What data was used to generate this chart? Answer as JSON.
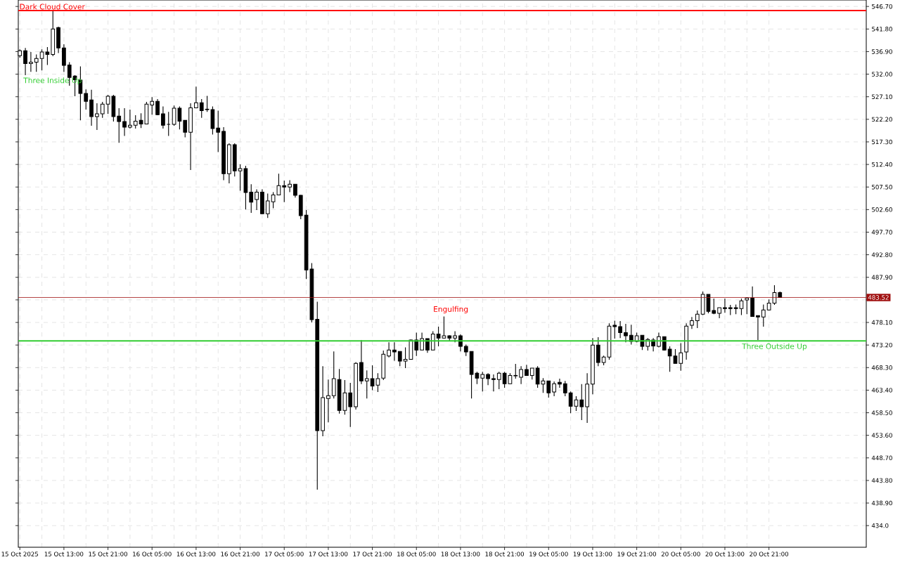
{
  "chart_data": {
    "type": "candlestick",
    "x": [
      "2025-10-15T05:00",
      "2025-10-15T06:00",
      "2025-10-15T07:00",
      "2025-10-15T08:00",
      "2025-10-15T09:00",
      "2025-10-15T10:00",
      "2025-10-15T11:00",
      "2025-10-15T12:00",
      "2025-10-15T13:00",
      "2025-10-15T14:00",
      "2025-10-15T15:00",
      "2025-10-15T16:00",
      "2025-10-15T17:00",
      "2025-10-15T18:00",
      "2025-10-15T19:00",
      "2025-10-15T20:00",
      "2025-10-15T21:00",
      "2025-10-15T22:00",
      "2025-10-15T23:00",
      "2025-10-16T00:00",
      "2025-10-16T01:00",
      "2025-10-16T02:00",
      "2025-10-16T03:00",
      "2025-10-16T04:00",
      "2025-10-16T05:00",
      "2025-10-16T06:00",
      "2025-10-16T07:00",
      "2025-10-16T08:00",
      "2025-10-16T09:00",
      "2025-10-16T10:00",
      "2025-10-16T11:00",
      "2025-10-16T12:00",
      "2025-10-16T13:00",
      "2025-10-16T14:00",
      "2025-10-16T15:00",
      "2025-10-16T16:00",
      "2025-10-16T17:00",
      "2025-10-16T18:00",
      "2025-10-16T19:00",
      "2025-10-16T20:00",
      "2025-10-16T21:00",
      "2025-10-16T22:00",
      "2025-10-16T23:00",
      "2025-10-17T00:00",
      "2025-10-17T01:00",
      "2025-10-17T02:00",
      "2025-10-17T03:00",
      "2025-10-17T04:00",
      "2025-10-17T05:00",
      "2025-10-17T06:00",
      "2025-10-17T07:00",
      "2025-10-17T08:00",
      "2025-10-17T09:00",
      "2025-10-17T10:00",
      "2025-10-17T11:00",
      "2025-10-17T12:00",
      "2025-10-17T13:00",
      "2025-10-17T14:00",
      "2025-10-17T15:00",
      "2025-10-17T16:00",
      "2025-10-17T17:00",
      "2025-10-17T18:00",
      "2025-10-17T19:00",
      "2025-10-17T20:00",
      "2025-10-17T21:00",
      "2025-10-17T22:00",
      "2025-10-17T23:00",
      "2025-10-18T00:00",
      "2025-10-18T01:00",
      "2025-10-18T02:00",
      "2025-10-18T03:00",
      "2025-10-18T04:00",
      "2025-10-18T05:00",
      "2025-10-18T06:00",
      "2025-10-18T07:00",
      "2025-10-18T08:00",
      "2025-10-18T09:00",
      "2025-10-18T10:00",
      "2025-10-18T11:00",
      "2025-10-18T12:00",
      "2025-10-18T13:00",
      "2025-10-18T14:00",
      "2025-10-18T15:00",
      "2025-10-18T16:00",
      "2025-10-18T17:00",
      "2025-10-18T18:00",
      "2025-10-18T19:00",
      "2025-10-18T20:00",
      "2025-10-18T21:00",
      "2025-10-18T22:00",
      "2025-10-18T23:00",
      "2025-10-19T00:00",
      "2025-10-19T01:00",
      "2025-10-19T02:00",
      "2025-10-19T03:00",
      "2025-10-19T04:00",
      "2025-10-19T05:00",
      "2025-10-19T06:00",
      "2025-10-19T07:00",
      "2025-10-19T08:00",
      "2025-10-19T09:00",
      "2025-10-19T10:00",
      "2025-10-19T11:00",
      "2025-10-19T12:00",
      "2025-10-19T13:00",
      "2025-10-19T14:00",
      "2025-10-19T15:00",
      "2025-10-19T16:00",
      "2025-10-19T17:00",
      "2025-10-19T18:00",
      "2025-10-19T19:00",
      "2025-10-19T20:00",
      "2025-10-19T21:00",
      "2025-10-19T22:00",
      "2025-10-19T23:00",
      "2025-10-20T00:00",
      "2025-10-20T01:00",
      "2025-10-20T02:00",
      "2025-10-20T03:00",
      "2025-10-20T04:00",
      "2025-10-20T05:00",
      "2025-10-20T06:00",
      "2025-10-20T07:00",
      "2025-10-20T08:00",
      "2025-10-20T09:00",
      "2025-10-20T10:00",
      "2025-10-20T11:00",
      "2025-10-20T12:00",
      "2025-10-20T13:00",
      "2025-10-20T14:00",
      "2025-10-20T15:00",
      "2025-10-20T16:00",
      "2025-10-20T17:00",
      "2025-10-20T18:00",
      "2025-10-20T19:00",
      "2025-10-20T20:00",
      "2025-10-20T21:00",
      "2025-10-20T22:00",
      "2025-10-20T23:00"
    ],
    "ohlc": [
      [
        536.0,
        537.4,
        535.6,
        537.1
      ],
      [
        537.1,
        537.7,
        531.8,
        534.3
      ],
      [
        534.3,
        536.8,
        532.5,
        534.6
      ],
      [
        534.6,
        536.3,
        532.5,
        535.4
      ],
      [
        535.4,
        537.4,
        532.8,
        536.8
      ],
      [
        536.8,
        537.9,
        534.0,
        536.3
      ],
      [
        536.3,
        545.8,
        535.9,
        541.8
      ],
      [
        542.1,
        542.3,
        536.6,
        537.7
      ],
      [
        537.7,
        538.5,
        532.5,
        533.9
      ],
      [
        534.0,
        534.6,
        529.5,
        531.3
      ],
      [
        531.6,
        531.8,
        527.2,
        530.8
      ],
      [
        530.7,
        533.7,
        522.0,
        527.8
      ],
      [
        527.8,
        528.7,
        524.3,
        526.1
      ],
      [
        526.4,
        528.6,
        520.8,
        522.8
      ],
      [
        522.8,
        525.7,
        519.9,
        523.4
      ],
      [
        523.4,
        526.0,
        522.5,
        525.5
      ],
      [
        525.5,
        527.5,
        523.4,
        527.2
      ],
      [
        527.2,
        527.5,
        521.7,
        522.8
      ],
      [
        522.9,
        524.6,
        517.1,
        521.7
      ],
      [
        521.7,
        524.6,
        518.6,
        520.5
      ],
      [
        520.5,
        524.3,
        520.2,
        520.9
      ],
      [
        520.9,
        523.1,
        520.2,
        521.8
      ],
      [
        522.0,
        523.5,
        520.3,
        521.2
      ],
      [
        521.2,
        526.0,
        521.1,
        525.5
      ],
      [
        525.3,
        527.0,
        523.2,
        526.1
      ],
      [
        526.1,
        526.6,
        523.1,
        523.2
      ],
      [
        523.4,
        525.0,
        520.2,
        520.9
      ],
      [
        521.1,
        523.8,
        518.6,
        521.1
      ],
      [
        521.1,
        525.2,
        520.8,
        524.6
      ],
      [
        524.6,
        525.0,
        520.0,
        521.8
      ],
      [
        522.0,
        522.0,
        518.3,
        519.4
      ],
      [
        519.4,
        525.7,
        511.2,
        524.7
      ],
      [
        524.7,
        529.3,
        524.7,
        525.8
      ],
      [
        525.8,
        526.6,
        522.5,
        524.1
      ],
      [
        524.4,
        527.3,
        523.8,
        524.3
      ],
      [
        524.3,
        525.0,
        518.9,
        520.2
      ],
      [
        520.3,
        524.1,
        515.1,
        519.4
      ],
      [
        519.6,
        520.5,
        509.0,
        510.4
      ],
      [
        510.4,
        517.0,
        508.3,
        516.7
      ],
      [
        516.7,
        517.0,
        509.8,
        511.0
      ],
      [
        511.0,
        512.4,
        506.7,
        511.5
      ],
      [
        511.5,
        512.1,
        502.6,
        506.3
      ],
      [
        506.4,
        508.1,
        501.9,
        504.2
      ],
      [
        504.8,
        507.0,
        502.5,
        506.4
      ],
      [
        506.4,
        507.0,
        501.7,
        501.7
      ],
      [
        501.7,
        506.1,
        500.8,
        504.5
      ],
      [
        504.3,
        506.4,
        502.9,
        505.8
      ],
      [
        505.8,
        510.4,
        505.8,
        507.8
      ],
      [
        507.8,
        508.9,
        504.2,
        507.5
      ],
      [
        507.5,
        509.0,
        506.4,
        508.1
      ],
      [
        508.1,
        508.1,
        505.2,
        505.7
      ],
      [
        505.7,
        505.8,
        500.5,
        501.3
      ],
      [
        501.4,
        502.5,
        487.5,
        489.5
      ],
      [
        489.7,
        491.0,
        478.1,
        478.7
      ],
      [
        478.8,
        482.6,
        441.8,
        454.6
      ],
      [
        454.6,
        468.6,
        453.4,
        461.8
      ],
      [
        461.6,
        465.7,
        456.4,
        462.2
      ],
      [
        462.2,
        471.8,
        461.6,
        465.9
      ],
      [
        465.7,
        468.0,
        458.3,
        459.0
      ],
      [
        459.0,
        465.6,
        458.1,
        462.8
      ],
      [
        462.8,
        465.0,
        455.4,
        459.8
      ],
      [
        459.8,
        469.5,
        459.2,
        469.2
      ],
      [
        469.4,
        474.3,
        464.7,
        465.4
      ],
      [
        465.4,
        467.7,
        461.6,
        465.9
      ],
      [
        465.9,
        468.8,
        463.4,
        464.3
      ],
      [
        464.5,
        467.1,
        463.0,
        465.9
      ],
      [
        466.0,
        472.0,
        465.6,
        471.2
      ],
      [
        470.8,
        473.8,
        470.5,
        472.1
      ],
      [
        472.1,
        473.8,
        469.8,
        471.7
      ],
      [
        471.8,
        471.8,
        468.6,
        469.7
      ],
      [
        469.7,
        472.7,
        468.2,
        470.1
      ],
      [
        470.1,
        474.4,
        470.0,
        474.3
      ],
      [
        474.3,
        475.9,
        470.8,
        472.1
      ],
      [
        472.1,
        475.9,
        472.1,
        474.6
      ],
      [
        474.6,
        474.6,
        471.5,
        472.1
      ],
      [
        472.1,
        476.2,
        472.1,
        475.6
      ],
      [
        475.6,
        477.2,
        472.9,
        474.7
      ],
      [
        474.7,
        479.4,
        474.6,
        475.2
      ],
      [
        475.2,
        475.3,
        474.1,
        474.7
      ],
      [
        474.7,
        476.2,
        473.8,
        475.2
      ],
      [
        475.2,
        475.5,
        471.8,
        472.9
      ],
      [
        472.9,
        473.3,
        470.8,
        471.7
      ],
      [
        471.8,
        471.8,
        461.6,
        466.8
      ],
      [
        467.1,
        467.4,
        464.7,
        466.0
      ],
      [
        466.0,
        467.4,
        463.1,
        466.8
      ],
      [
        466.8,
        467.1,
        464.5,
        465.9
      ],
      [
        465.9,
        466.8,
        463.1,
        465.7
      ],
      [
        465.7,
        467.4,
        463.6,
        467.1
      ],
      [
        467.1,
        467.4,
        463.9,
        464.8
      ],
      [
        464.8,
        467.1,
        464.8,
        466.6
      ],
      [
        466.5,
        469.1,
        465.9,
        466.6
      ],
      [
        466.2,
        468.6,
        464.7,
        467.9
      ],
      [
        467.9,
        468.9,
        466.6,
        466.6
      ],
      [
        466.6,
        468.2,
        465.7,
        468.2
      ],
      [
        468.2,
        468.6,
        463.9,
        464.7
      ],
      [
        464.7,
        466.0,
        462.8,
        465.4
      ],
      [
        465.4,
        465.4,
        461.8,
        462.8
      ],
      [
        463.0,
        465.3,
        462.1,
        464.8
      ],
      [
        465.1,
        465.9,
        463.9,
        464.7
      ],
      [
        464.8,
        465.4,
        462.1,
        462.8
      ],
      [
        462.8,
        463.1,
        458.4,
        459.9
      ],
      [
        459.9,
        462.1,
        458.9,
        461.3
      ],
      [
        461.3,
        464.7,
        456.9,
        459.8
      ],
      [
        459.8,
        467.1,
        456.3,
        464.7
      ],
      [
        464.7,
        474.7,
        462.5,
        473.2
      ],
      [
        473.2,
        474.9,
        468.6,
        469.4
      ],
      [
        469.4,
        470.9,
        468.8,
        470.6
      ],
      [
        470.6,
        477.9,
        470.0,
        477.3
      ],
      [
        477.5,
        478.5,
        474.6,
        477.2
      ],
      [
        477.2,
        478.4,
        474.7,
        475.9
      ],
      [
        475.9,
        477.8,
        473.8,
        475.2
      ],
      [
        475.3,
        477.6,
        473.3,
        474.0
      ],
      [
        474.0,
        475.9,
        473.8,
        475.2
      ],
      [
        475.3,
        475.3,
        472.1,
        472.9
      ],
      [
        472.9,
        474.7,
        472.0,
        474.4
      ],
      [
        474.3,
        474.7,
        471.8,
        473.0
      ],
      [
        472.9,
        475.9,
        472.7,
        475.0
      ],
      [
        475.0,
        475.0,
        472.0,
        472.1
      ],
      [
        472.3,
        472.9,
        467.4,
        470.8
      ],
      [
        470.8,
        472.3,
        469.2,
        469.2
      ],
      [
        469.2,
        473.6,
        467.6,
        471.5
      ],
      [
        471.7,
        477.9,
        470.0,
        477.3
      ],
      [
        477.5,
        479.3,
        476.7,
        478.5
      ],
      [
        478.5,
        480.7,
        476.9,
        479.9
      ],
      [
        479.9,
        484.8,
        479.7,
        484.2
      ],
      [
        484.2,
        484.2,
        480.1,
        480.5
      ],
      [
        480.7,
        483.3,
        479.9,
        480.1
      ],
      [
        480.1,
        481.3,
        479.0,
        481.3
      ],
      [
        481.3,
        483.3,
        480.2,
        481.1
      ],
      [
        481.3,
        481.9,
        479.7,
        481.1
      ],
      [
        481.3,
        482.0,
        479.9,
        481.1
      ],
      [
        481.1,
        483.3,
        479.7,
        482.8
      ],
      [
        483.0,
        483.6,
        479.9,
        483.4
      ],
      [
        483.4,
        485.9,
        479.4,
        479.4
      ],
      [
        479.6,
        479.6,
        474.3,
        479.3
      ],
      [
        479.3,
        482.0,
        477.2,
        480.8
      ],
      [
        480.8,
        483.1,
        480.7,
        482.3
      ],
      [
        482.3,
        486.2,
        481.9,
        484.6
      ],
      [
        484.6,
        484.8,
        483.5,
        483.5
      ]
    ],
    "xlim": [
      "2025-10-15T04:43",
      "2025-10-21T14:40"
    ],
    "ylim": [
      429.3,
      548.1
    ],
    "xticks": [
      {
        "value": "2025-10-15T05:00",
        "label": "15 Oct 2025"
      },
      {
        "value": "2025-10-15T13:00",
        "label": "15 Oct 13:00"
      },
      {
        "value": "2025-10-15T21:00",
        "label": "15 Oct 21:00"
      },
      {
        "value": "2025-10-16T05:00",
        "label": "16 Oct 05:00"
      },
      {
        "value": "2025-10-16T13:00",
        "label": "16 Oct 13:00"
      },
      {
        "value": "2025-10-16T21:00",
        "label": "16 Oct 21:00"
      },
      {
        "value": "2025-10-17T05:00",
        "label": "17 Oct 05:00"
      },
      {
        "value": "2025-10-17T13:00",
        "label": "17 Oct 13:00"
      },
      {
        "value": "2025-10-17T21:00",
        "label": "17 Oct 21:00"
      },
      {
        "value": "2025-10-18T05:00",
        "label": "18 Oct 05:00"
      },
      {
        "value": "2025-10-18T13:00",
        "label": "18 Oct 13:00"
      },
      {
        "value": "2025-10-18T21:00",
        "label": "18 Oct 21:00"
      },
      {
        "value": "2025-10-19T05:00",
        "label": "19 Oct 05:00"
      },
      {
        "value": "2025-10-19T13:00",
        "label": "19 Oct 13:00"
      },
      {
        "value": "2025-10-19T21:00",
        "label": "19 Oct 21:00"
      },
      {
        "value": "2025-10-20T05:00",
        "label": "20 Oct 05:00"
      },
      {
        "value": "2025-10-20T13:00",
        "label": "20 Oct 13:00"
      },
      {
        "value": "2025-10-20T21:00",
        "label": "20 Oct 21:00"
      }
    ],
    "yticks": [
      {
        "value": 434.0,
        "label": "434.0"
      },
      {
        "value": 438.9,
        "label": "438.90"
      },
      {
        "value": 443.8,
        "label": "443.80"
      },
      {
        "value": 448.7,
        "label": "448.70"
      },
      {
        "value": 453.6,
        "label": "453.60"
      },
      {
        "value": 458.5,
        "label": "458.50"
      },
      {
        "value": 463.4,
        "label": "463.40"
      },
      {
        "value": 468.3,
        "label": "468.30"
      },
      {
        "value": 473.2,
        "label": "473.20"
      },
      {
        "value": 478.1,
        "label": "478.10"
      },
      {
        "value": 483.0,
        "label": null
      },
      {
        "value": 487.9,
        "label": "487.90"
      },
      {
        "value": 492.8,
        "label": "492.80"
      },
      {
        "value": 497.7,
        "label": "497.70"
      },
      {
        "value": 502.6,
        "label": "502.60"
      },
      {
        "value": 507.5,
        "label": "507.50"
      },
      {
        "value": 512.4,
        "label": "512.40"
      },
      {
        "value": 517.3,
        "label": "517.30"
      },
      {
        "value": 522.2,
        "label": "522.20"
      },
      {
        "value": 527.1,
        "label": "527.10"
      },
      {
        "value": 532.0,
        "label": "532.00"
      },
      {
        "value": 536.9,
        "label": "536.90"
      },
      {
        "value": 541.8,
        "label": "541.80"
      },
      {
        "value": 546.7,
        "label": "546.70"
      }
    ],
    "grid": true,
    "ref_lines": [
      {
        "axis": "y",
        "value": 545.8,
        "label": "Dark Cloud Cover",
        "color": "#ff0000"
      },
      {
        "axis": "y",
        "value": 483.52,
        "label": "483.52",
        "color": "#a01010"
      },
      {
        "axis": "y",
        "value": 474.1,
        "label": "Three Outside Up",
        "color": "#32cd32"
      }
    ],
    "annotations": [
      "Three Inside Up",
      "Engulfing"
    ]
  }
}
